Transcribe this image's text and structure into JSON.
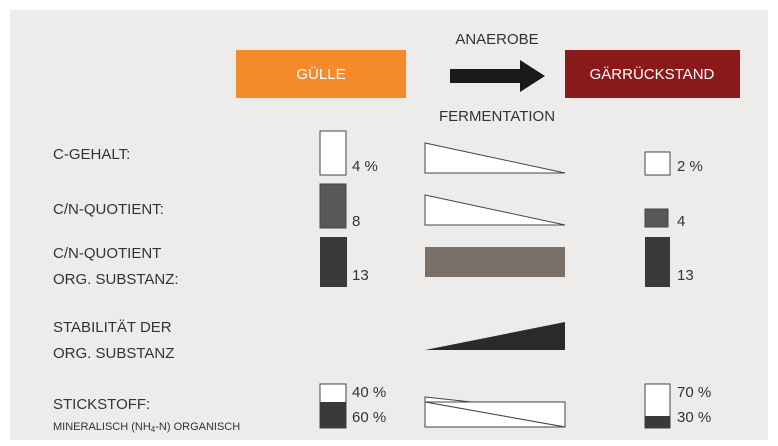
{
  "header": {
    "source": "GÜLLE",
    "process_top": "ANAEROBE",
    "process_bottom": "FERMENTATION",
    "result": "GÄRRÜCKSTAND"
  },
  "rows": [
    {
      "label": [
        "C-GEHALT:"
      ],
      "before": "4 %",
      "after": "2 %"
    },
    {
      "label": [
        "C/N-QUOTIENT:"
      ],
      "before": "8",
      "after": "4"
    },
    {
      "label": [
        "C/N-QUOTIENT",
        "ORG. SUBSTANZ:"
      ],
      "before": "13",
      "after": "13"
    },
    {
      "label": [
        "STABILITÄT DER",
        "ORG. SUBSTANZ"
      ]
    },
    {
      "label": [
        "STICKSTOFF:"
      ],
      "sublabel": [
        "MINERALISCH (NH",
        "4",
        "-N) ORGANISCH"
      ],
      "before": [
        "40 %",
        "60 %"
      ],
      "after": [
        "70 %",
        "30 %"
      ]
    }
  ]
}
